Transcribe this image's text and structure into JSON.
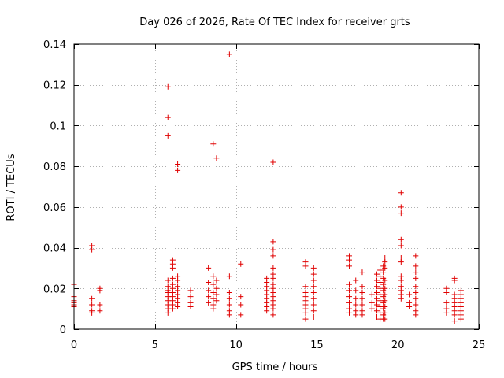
{
  "chart_data": {
    "type": "scatter",
    "title": "Day 026 of 2026, Rate Of TEC Index for receiver grts",
    "xlabel": "GPS time / hours",
    "ylabel": "ROTI / TECUs",
    "xlim": [
      0,
      25
    ],
    "ylim": [
      0,
      0.14
    ],
    "x_ticks": [
      0,
      5,
      10,
      15,
      20,
      25
    ],
    "x_tick_labels": [
      "0",
      "5",
      "10",
      "15",
      "20",
      "25"
    ],
    "y_ticks": [
      0,
      0.02,
      0.04,
      0.06,
      0.08,
      0.1,
      0.12,
      0.14
    ],
    "y_tick_labels": [
      "0",
      "0.02",
      "0.04",
      "0.06",
      "0.08",
      "0.1",
      "0.12",
      "0.14"
    ],
    "grid": true,
    "legend": "none",
    "marker": "plus",
    "marker_color": "#e00000",
    "series": [
      {
        "points": [
          [
            0.0,
            0.022
          ],
          [
            0.0,
            0.016
          ],
          [
            0.0,
            0.014
          ],
          [
            0.0,
            0.013
          ],
          [
            0.0,
            0.012
          ],
          [
            0.0,
            0.011
          ],
          [
            1.1,
            0.041
          ],
          [
            1.1,
            0.039
          ],
          [
            1.1,
            0.015
          ],
          [
            1.1,
            0.012
          ],
          [
            1.1,
            0.009
          ],
          [
            1.1,
            0.008
          ],
          [
            1.6,
            0.02
          ],
          [
            1.6,
            0.019
          ],
          [
            1.6,
            0.012
          ],
          [
            1.6,
            0.009
          ],
          [
            5.8,
            0.119
          ],
          [
            5.8,
            0.104
          ],
          [
            5.8,
            0.095
          ],
          [
            5.8,
            0.024
          ],
          [
            5.8,
            0.021
          ],
          [
            5.8,
            0.019
          ],
          [
            5.8,
            0.018
          ],
          [
            5.8,
            0.016
          ],
          [
            5.8,
            0.014
          ],
          [
            5.8,
            0.012
          ],
          [
            5.8,
            0.01
          ],
          [
            5.8,
            0.008
          ],
          [
            6.1,
            0.034
          ],
          [
            6.1,
            0.032
          ],
          [
            6.1,
            0.03
          ],
          [
            6.1,
            0.025
          ],
          [
            6.1,
            0.022
          ],
          [
            6.1,
            0.02
          ],
          [
            6.1,
            0.018
          ],
          [
            6.1,
            0.016
          ],
          [
            6.1,
            0.014
          ],
          [
            6.1,
            0.012
          ],
          [
            6.1,
            0.01
          ],
          [
            6.4,
            0.081
          ],
          [
            6.4,
            0.078
          ],
          [
            6.4,
            0.026
          ],
          [
            6.4,
            0.024
          ],
          [
            6.4,
            0.021
          ],
          [
            6.4,
            0.019
          ],
          [
            6.4,
            0.017
          ],
          [
            6.4,
            0.015
          ],
          [
            6.4,
            0.013
          ],
          [
            6.4,
            0.011
          ],
          [
            7.2,
            0.019
          ],
          [
            7.2,
            0.016
          ],
          [
            7.2,
            0.013
          ],
          [
            7.2,
            0.011
          ],
          [
            8.3,
            0.03
          ],
          [
            8.3,
            0.023
          ],
          [
            8.3,
            0.019
          ],
          [
            8.3,
            0.016
          ],
          [
            8.3,
            0.013
          ],
          [
            8.6,
            0.091
          ],
          [
            8.6,
            0.026
          ],
          [
            8.6,
            0.022
          ],
          [
            8.6,
            0.018
          ],
          [
            8.6,
            0.015
          ],
          [
            8.6,
            0.012
          ],
          [
            8.6,
            0.01
          ],
          [
            8.8,
            0.084
          ],
          [
            8.8,
            0.024
          ],
          [
            8.8,
            0.02
          ],
          [
            8.8,
            0.017
          ],
          [
            8.8,
            0.014
          ],
          [
            9.6,
            0.135
          ],
          [
            9.6,
            0.026
          ],
          [
            9.6,
            0.018
          ],
          [
            9.6,
            0.015
          ],
          [
            9.6,
            0.012
          ],
          [
            9.6,
            0.009
          ],
          [
            9.6,
            0.007
          ],
          [
            10.3,
            0.032
          ],
          [
            10.3,
            0.016
          ],
          [
            10.3,
            0.012
          ],
          [
            10.3,
            0.007
          ],
          [
            11.9,
            0.025
          ],
          [
            11.9,
            0.023
          ],
          [
            11.9,
            0.021
          ],
          [
            11.9,
            0.019
          ],
          [
            11.9,
            0.017
          ],
          [
            11.9,
            0.015
          ],
          [
            11.9,
            0.013
          ],
          [
            11.9,
            0.011
          ],
          [
            11.9,
            0.009
          ],
          [
            12.3,
            0.082
          ],
          [
            12.3,
            0.043
          ],
          [
            12.3,
            0.039
          ],
          [
            12.3,
            0.036
          ],
          [
            12.3,
            0.03
          ],
          [
            12.3,
            0.027
          ],
          [
            12.3,
            0.025
          ],
          [
            12.3,
            0.022
          ],
          [
            12.3,
            0.02
          ],
          [
            12.3,
            0.018
          ],
          [
            12.3,
            0.016
          ],
          [
            12.3,
            0.014
          ],
          [
            12.3,
            0.012
          ],
          [
            12.3,
            0.01
          ],
          [
            12.3,
            0.007
          ],
          [
            14.3,
            0.033
          ],
          [
            14.3,
            0.031
          ],
          [
            14.3,
            0.021
          ],
          [
            14.3,
            0.018
          ],
          [
            14.3,
            0.016
          ],
          [
            14.3,
            0.014
          ],
          [
            14.3,
            0.012
          ],
          [
            14.3,
            0.01
          ],
          [
            14.3,
            0.008
          ],
          [
            14.3,
            0.005
          ],
          [
            14.8,
            0.03
          ],
          [
            14.8,
            0.027
          ],
          [
            14.8,
            0.024
          ],
          [
            14.8,
            0.021
          ],
          [
            14.8,
            0.018
          ],
          [
            14.8,
            0.015
          ],
          [
            14.8,
            0.012
          ],
          [
            14.8,
            0.009
          ],
          [
            14.8,
            0.006
          ],
          [
            17.0,
            0.036
          ],
          [
            17.0,
            0.034
          ],
          [
            17.0,
            0.031
          ],
          [
            17.0,
            0.022
          ],
          [
            17.0,
            0.019
          ],
          [
            17.0,
            0.016
          ],
          [
            17.0,
            0.013
          ],
          [
            17.0,
            0.01
          ],
          [
            17.0,
            0.008
          ],
          [
            17.4,
            0.024
          ],
          [
            17.4,
            0.019
          ],
          [
            17.4,
            0.015
          ],
          [
            17.4,
            0.012
          ],
          [
            17.4,
            0.009
          ],
          [
            17.4,
            0.007
          ],
          [
            17.8,
            0.028
          ],
          [
            17.8,
            0.021
          ],
          [
            17.8,
            0.018
          ],
          [
            17.8,
            0.015
          ],
          [
            17.8,
            0.012
          ],
          [
            17.8,
            0.009
          ],
          [
            17.8,
            0.007
          ],
          [
            18.4,
            0.017
          ],
          [
            18.4,
            0.013
          ],
          [
            18.4,
            0.01
          ],
          [
            18.7,
            0.027
          ],
          [
            18.7,
            0.024
          ],
          [
            18.7,
            0.021
          ],
          [
            18.7,
            0.018
          ],
          [
            18.7,
            0.015
          ],
          [
            18.7,
            0.012
          ],
          [
            18.7,
            0.009
          ],
          [
            18.7,
            0.006
          ],
          [
            18.9,
            0.029
          ],
          [
            18.9,
            0.026
          ],
          [
            18.9,
            0.023
          ],
          [
            18.9,
            0.02
          ],
          [
            18.9,
            0.017
          ],
          [
            18.9,
            0.014
          ],
          [
            18.9,
            0.011
          ],
          [
            18.9,
            0.008
          ],
          [
            18.9,
            0.005
          ],
          [
            19.1,
            0.031
          ],
          [
            19.1,
            0.028
          ],
          [
            19.1,
            0.025
          ],
          [
            19.1,
            0.022
          ],
          [
            19.1,
            0.019
          ],
          [
            19.1,
            0.016
          ],
          [
            19.1,
            0.013
          ],
          [
            19.1,
            0.01
          ],
          [
            19.1,
            0.007
          ],
          [
            19.1,
            0.005
          ],
          [
            19.2,
            0.035
          ],
          [
            19.2,
            0.033
          ],
          [
            19.2,
            0.03
          ],
          [
            19.2,
            0.024
          ],
          [
            19.2,
            0.02
          ],
          [
            19.2,
            0.017
          ],
          [
            19.2,
            0.014
          ],
          [
            19.2,
            0.011
          ],
          [
            19.2,
            0.008
          ],
          [
            19.2,
            0.005
          ],
          [
            20.2,
            0.067
          ],
          [
            20.2,
            0.06
          ],
          [
            20.2,
            0.057
          ],
          [
            20.2,
            0.044
          ],
          [
            20.2,
            0.041
          ],
          [
            20.2,
            0.035
          ],
          [
            20.2,
            0.033
          ],
          [
            20.2,
            0.026
          ],
          [
            20.2,
            0.024
          ],
          [
            20.2,
            0.021
          ],
          [
            20.2,
            0.019
          ],
          [
            20.2,
            0.017
          ],
          [
            20.2,
            0.015
          ],
          [
            20.7,
            0.017
          ],
          [
            20.7,
            0.013
          ],
          [
            20.7,
            0.011
          ],
          [
            21.1,
            0.036
          ],
          [
            21.1,
            0.031
          ],
          [
            21.1,
            0.028
          ],
          [
            21.1,
            0.025
          ],
          [
            21.1,
            0.021
          ],
          [
            21.1,
            0.018
          ],
          [
            21.1,
            0.015
          ],
          [
            21.1,
            0.012
          ],
          [
            21.1,
            0.009
          ],
          [
            21.1,
            0.007
          ],
          [
            23.0,
            0.02
          ],
          [
            23.0,
            0.018
          ],
          [
            23.0,
            0.013
          ],
          [
            23.0,
            0.01
          ],
          [
            23.0,
            0.008
          ],
          [
            23.5,
            0.025
          ],
          [
            23.5,
            0.024
          ],
          [
            23.5,
            0.017
          ],
          [
            23.5,
            0.015
          ],
          [
            23.5,
            0.013
          ],
          [
            23.5,
            0.011
          ],
          [
            23.5,
            0.009
          ],
          [
            23.5,
            0.007
          ],
          [
            23.5,
            0.004
          ],
          [
            23.9,
            0.019
          ],
          [
            23.9,
            0.017
          ],
          [
            23.9,
            0.015
          ],
          [
            23.9,
            0.013
          ],
          [
            23.9,
            0.011
          ],
          [
            23.9,
            0.009
          ],
          [
            23.9,
            0.007
          ],
          [
            23.9,
            0.005
          ]
        ]
      }
    ]
  }
}
